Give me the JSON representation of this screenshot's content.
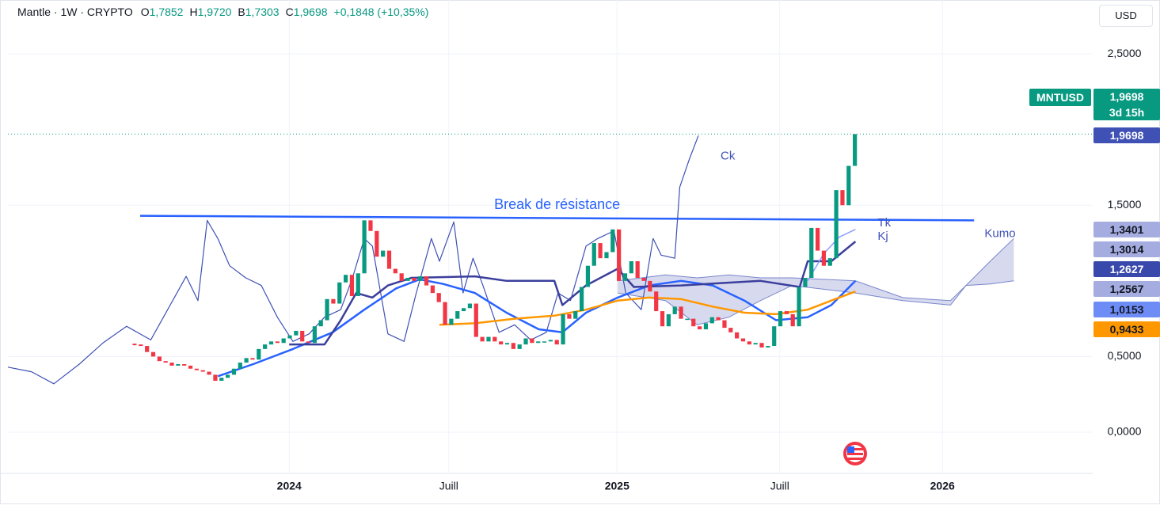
{
  "chart_data": {
    "type": "candlestick",
    "header": {
      "symbol": "Mantle · 1W · CRYPTO",
      "ohlc": [
        [
          "O",
          "1,7852"
        ],
        [
          "H",
          "1,9720"
        ],
        [
          "B",
          "1,7303"
        ],
        [
          "C",
          "1,9698"
        ]
      ],
      "change": "+0,1848 (+10,35%)"
    },
    "currency": "USD",
    "xlim": [
      -20.4,
      154.3
    ],
    "ylim": [
      -0.23,
      2.856
    ],
    "xticks": [
      {
        "value": 24.9,
        "label": "2024"
      },
      {
        "value": 50.6,
        "label": "Juill"
      },
      {
        "value": 77.7,
        "label": "2025"
      },
      {
        "value": 103.9,
        "label": "Juill"
      },
      {
        "value": 130.1,
        "label": "2026"
      }
    ],
    "yticks": [
      {
        "value": 0,
        "label": "0,0000"
      },
      {
        "value": 0.5,
        "label": "0,5000"
      },
      {
        "value": 1.5,
        "label": "1,5000"
      },
      {
        "value": 2.5,
        "label": "2,5000"
      }
    ],
    "grid": true,
    "up_color": "#089981",
    "down_color": "#f23645",
    "series": [
      {
        "name": "MNTUSD",
        "x": [
          0,
          1,
          2,
          3,
          4,
          5,
          6,
          7,
          8,
          9,
          10,
          11,
          12,
          13,
          14,
          15,
          16,
          17,
          18,
          19,
          20,
          21,
          22,
          23,
          24,
          25,
          26,
          27,
          28,
          29,
          30,
          31,
          32,
          33,
          34,
          35,
          36,
          37,
          38,
          39,
          40,
          41,
          42,
          43,
          44,
          45,
          46,
          47,
          48,
          49,
          50,
          51,
          52,
          53,
          54,
          55,
          56,
          57,
          58,
          59,
          60,
          61,
          62,
          63,
          64,
          65,
          66,
          67,
          68,
          69,
          70,
          71,
          72,
          73,
          74,
          75,
          76,
          77,
          78,
          79,
          80,
          81,
          82,
          83,
          84,
          85,
          86,
          87,
          88,
          89,
          90,
          91,
          92,
          93,
          94,
          95,
          96,
          97,
          98,
          99,
          100,
          101,
          102,
          103,
          104,
          105,
          106,
          107,
          108,
          109,
          110,
          111,
          112,
          113,
          114,
          115,
          116
        ],
        "values": [
          0.58,
          0.57,
          0.53,
          0.5,
          0.47,
          0.46,
          0.44,
          0.45,
          0.44,
          0.42,
          0.41,
          0.4,
          0.38,
          0.34,
          0.36,
          0.38,
          0.42,
          0.46,
          0.49,
          0.48,
          0.55,
          0.58,
          0.6,
          0.59,
          0.62,
          0.64,
          0.67,
          0.6,
          0.59,
          0.7,
          0.74,
          0.88,
          0.85,
          0.99,
          1.04,
          0.9,
          1.05,
          1.4,
          1.33,
          1.16,
          1.2,
          1.08,
          1.05,
          1.0,
          1.02,
          1.0,
          1.03,
          0.97,
          0.92,
          0.86,
          0.71,
          0.75,
          0.8,
          0.82,
          0.85,
          0.63,
          0.6,
          0.63,
          0.6,
          0.58,
          0.59,
          0.55,
          0.58,
          0.62,
          0.59,
          0.6,
          0.6,
          0.61,
          0.58,
          0.78,
          0.75,
          0.8,
          0.96,
          1.1,
          1.25,
          1.15,
          1.19,
          1.34,
          1.0,
          1.05,
          1.13,
          1.02,
          1.0,
          0.93,
          0.8,
          0.7,
          0.78,
          0.83,
          0.75,
          0.75,
          0.7,
          0.68,
          0.72,
          0.76,
          0.74,
          0.69,
          0.66,
          0.62,
          0.6,
          0.58,
          0.59,
          0.56,
          0.57,
          0.7,
          0.8,
          0.78,
          0.7,
          0.96,
          1.02,
          1.35,
          1.2,
          1.1,
          1.15,
          1.6,
          1.5,
          1.76,
          1.9698
        ]
      }
    ],
    "lines": [
      {
        "name": "Ck",
        "color": "#3f51b5",
        "width": 1.2,
        "x": [
          -20.4,
          -16.6,
          -13.0,
          -8.9,
          -5.1,
          -1.3,
          2.6,
          6.4,
          8.3,
          10.2,
          11.7,
          13.4,
          15.3,
          17.9,
          20.4,
          23.0,
          25.5,
          28.1,
          30.6,
          33.2,
          35.1,
          37.0,
          38.3,
          40.8,
          43.4,
          45.3,
          47.8,
          49.1,
          51.4,
          52.9,
          54.5,
          56.1,
          58.7,
          61.2,
          63.8,
          66.3,
          68.2,
          70.2,
          72.7,
          74.6,
          77.2,
          79.1,
          81.6,
          83.5,
          84.8,
          87.0,
          87.8,
          89.3,
          90.8
        ],
        "values": [
          0.43,
          0.4,
          0.32,
          0.45,
          0.59,
          0.7,
          0.61,
          0.89,
          1.03,
          0.87,
          1.4,
          1.28,
          1.1,
          1.02,
          0.97,
          0.76,
          0.6,
          0.65,
          0.76,
          0.81,
          1.02,
          1.28,
          1.23,
          0.65,
          0.6,
          0.91,
          1.28,
          1.13,
          1.39,
          0.92,
          1.15,
          0.97,
          0.66,
          0.71,
          0.61,
          0.66,
          0.92,
          0.87,
          1.23,
          1.28,
          1.33,
          0.92,
          0.81,
          1.28,
          1.17,
          1.15,
          1.62,
          1.8,
          1.96
        ]
      },
      {
        "color": "#2962ff",
        "width": 2.5,
        "x": [
          13.4,
          19.1,
          25.5,
          31.9,
          37.0,
          42.1,
          45.9,
          49.7,
          54.8,
          59.9,
          65.1,
          68.9,
          72.7,
          77.8,
          82.9,
          88.0,
          93.1,
          98.2,
          103.3,
          108.4,
          112.2,
          116.1
        ],
        "values": [
          0.37,
          0.45,
          0.55,
          0.66,
          0.81,
          0.95,
          1.01,
          0.98,
          0.92,
          0.79,
          0.68,
          0.66,
          0.79,
          0.89,
          0.97,
          1.0,
          0.97,
          0.87,
          0.74,
          0.76,
          0.84,
          1.0
        ]
      },
      {
        "color": "#ff9800",
        "width": 2.5,
        "x": [
          49.1,
          54.8,
          61.2,
          67.6,
          72.7,
          77.8,
          82.9,
          88.0,
          93.1,
          98.2,
          103.3,
          108.4,
          112.2,
          116.1
        ],
        "values": [
          0.71,
          0.72,
          0.75,
          0.77,
          0.81,
          0.87,
          0.89,
          0.88,
          0.83,
          0.79,
          0.78,
          0.81,
          0.87,
          0.93
        ]
      },
      {
        "name": "Kj",
        "color": "#3b3f9c",
        "width": 2.5,
        "x": [
          24.9,
          30.6,
          33.2,
          35.7,
          38.3,
          40.8,
          44.6,
          54.8,
          59.9,
          67.6,
          68.9,
          72.7,
          77.8,
          80.4,
          88.0,
          100.8,
          107.1,
          108.4,
          112.2,
          116.1
        ],
        "values": [
          0.58,
          0.58,
          0.74,
          0.92,
          0.89,
          0.97,
          1.02,
          1.03,
          1.0,
          1.0,
          0.84,
          0.97,
          1.08,
          0.96,
          0.97,
          1.0,
          0.96,
          1.13,
          1.13,
          1.26
        ]
      },
      {
        "name": "Tk",
        "color": "#8c9eff",
        "width": 1.5,
        "x": [
          108.4,
          111.0,
          113.5,
          116.1
        ],
        "values": [
          1.0,
          1.18,
          1.29,
          1.34
        ]
      }
    ],
    "cloud": {
      "name": "Kumo",
      "color": "#7986cb",
      "x": [
        77.8,
        85.5,
        90.6,
        95.7,
        100.8,
        105.9,
        116.1,
        123.7,
        131.4,
        133.9,
        137.8,
        141.6
      ],
      "upper": [
        1.0,
        1.04,
        1.02,
        1.04,
        1.02,
        1.02,
        1.0,
        0.89,
        0.87,
        0.97,
        1.13,
        1.28
      ],
      "lower": [
        0.92,
        0.87,
        0.71,
        0.76,
        0.87,
        0.97,
        0.92,
        0.87,
        0.84,
        0.97,
        0.98,
        1.0
      ]
    },
    "resistance": {
      "label": "Break de résistance",
      "color": "#2962ff",
      "x": [
        0.9,
        135.2
      ],
      "values": [
        1.43,
        1.4
      ]
    },
    "price_tags": [
      {
        "symbol": "MNTUSD",
        "label": "1,9698",
        "sub": "3d 15h",
        "color": "#089981",
        "text_color": "#ffffff"
      },
      {
        "label": "1,9698",
        "color": "#3f51b5",
        "text_color": "#ffffff"
      },
      {
        "label": "1,3401",
        "color": "#a5acdf",
        "text_color": "#131722"
      },
      {
        "label": "1,3014",
        "color": "#a5acdf",
        "text_color": "#131722"
      },
      {
        "label": "1,2627",
        "color": "#3949ab",
        "text_color": "#ffffff"
      },
      {
        "label": "1,2567",
        "color": "#a5acdf",
        "text_color": "#131722"
      },
      {
        "label": "1,0153",
        "color": "#6e8cf5",
        "text_color": "#131722"
      },
      {
        "label": "0,9433",
        "color": "#ff9800",
        "text_color": "#131722"
      }
    ]
  }
}
